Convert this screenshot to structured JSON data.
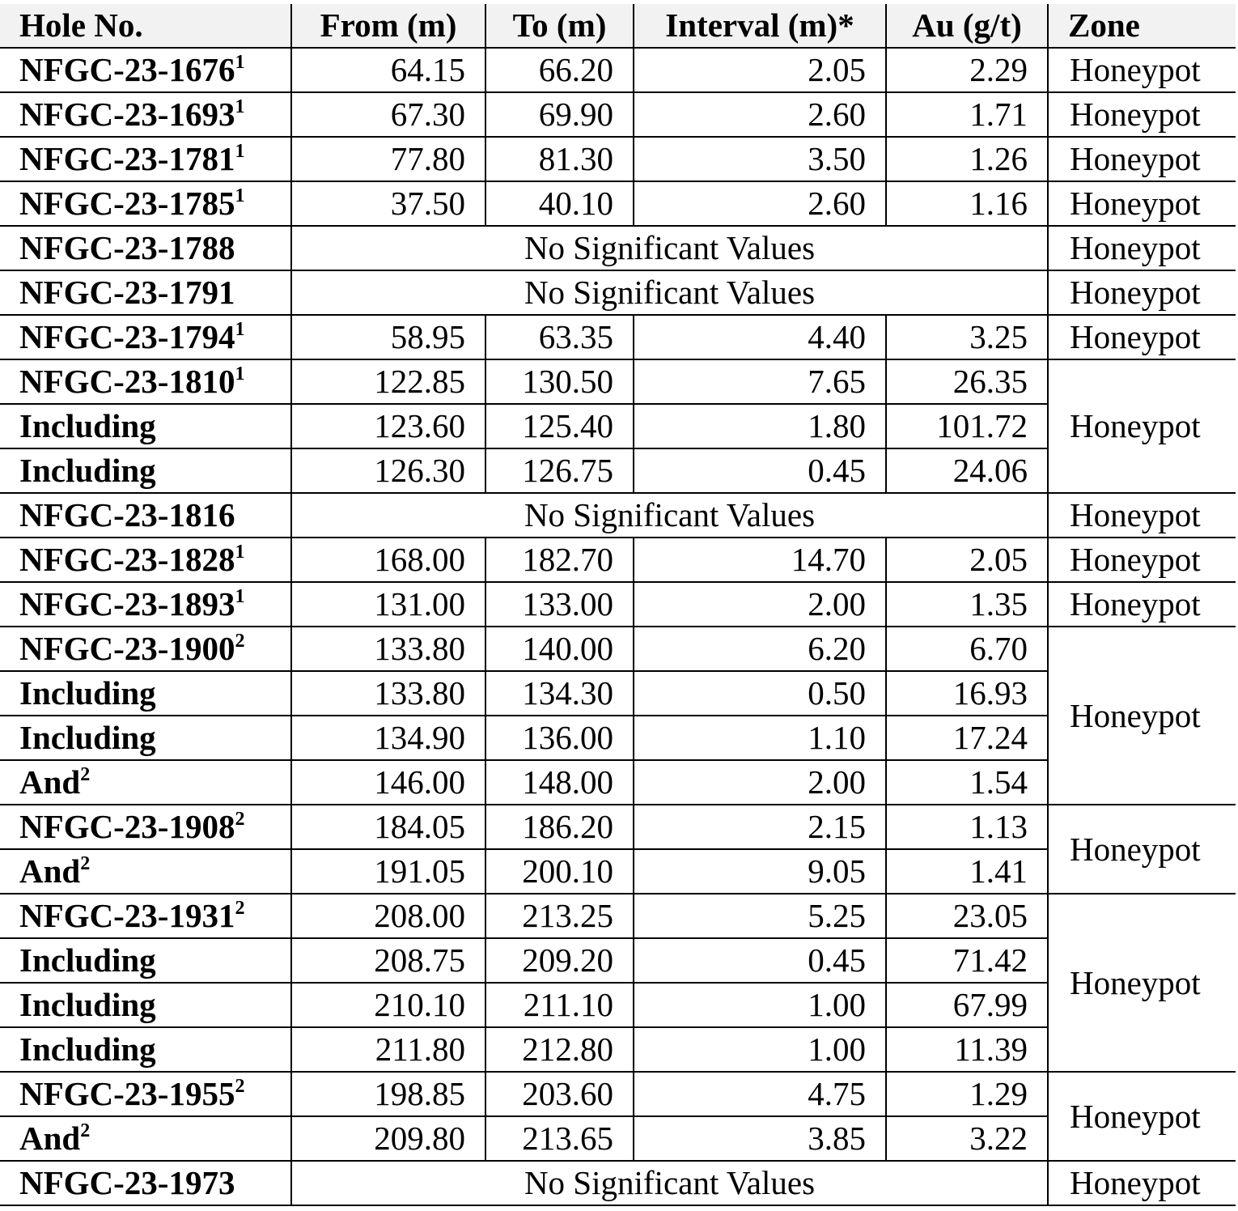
{
  "headers": [
    "Hole No.",
    "From (m)",
    "To (m)",
    "Interval (m)*",
    "Au (g/t)",
    "Zone"
  ],
  "rows": [
    {
      "hole": "NFGC-23-1676",
      "sup": "1",
      "from": "64.15",
      "to": "66.20",
      "interval": "2.05",
      "au": "2.29",
      "zone": "Honeypot",
      "zone_span": 1
    },
    {
      "hole": "NFGC-23-1693",
      "sup": "1",
      "from": "67.30",
      "to": "69.90",
      "interval": "2.60",
      "au": "1.71",
      "zone": "Honeypot",
      "zone_span": 1
    },
    {
      "hole": "NFGC-23-1781",
      "sup": "1",
      "from": "77.80",
      "to": "81.30",
      "interval": "3.50",
      "au": "1.26",
      "zone": "Honeypot",
      "zone_span": 1
    },
    {
      "hole": "NFGC-23-1785",
      "sup": "1",
      "from": "37.50",
      "to": "40.10",
      "interval": "2.60",
      "au": "1.16",
      "zone": "Honeypot",
      "zone_span": 1
    },
    {
      "hole": "NFGC-23-1788",
      "nsv": "No Significant Values",
      "zone": "Honeypot",
      "zone_span": 1
    },
    {
      "hole": "NFGC-23-1791",
      "nsv": "No Significant Values",
      "zone": "Honeypot",
      "zone_span": 1
    },
    {
      "hole": "NFGC-23-1794",
      "sup": "1",
      "from": "58.95",
      "to": "63.35",
      "interval": "4.40",
      "au": "3.25",
      "zone": "Honeypot",
      "zone_span": 1
    },
    {
      "hole": "NFGC-23-1810",
      "sup": "1",
      "from": "122.85",
      "to": "130.50",
      "interval": "7.65",
      "au": "26.35",
      "zone": "Honeypot",
      "zone_span": 3
    },
    {
      "hole": "Including",
      "from": "123.60",
      "to": "125.40",
      "interval": "1.80",
      "au": "101.72"
    },
    {
      "hole": "Including",
      "from": "126.30",
      "to": "126.75",
      "interval": "0.45",
      "au": "24.06"
    },
    {
      "hole": "NFGC-23-1816",
      "nsv": "No Significant Values",
      "zone": "Honeypot",
      "zone_span": 1
    },
    {
      "hole": "NFGC-23-1828",
      "sup": "1",
      "from": "168.00",
      "to": "182.70",
      "interval": "14.70",
      "au": "2.05",
      "zone": "Honeypot",
      "zone_span": 1
    },
    {
      "hole": "NFGC-23-1893",
      "sup": "1",
      "from": "131.00",
      "to": "133.00",
      "interval": "2.00",
      "au": "1.35",
      "zone": "Honeypot",
      "zone_span": 1
    },
    {
      "hole": "NFGC-23-1900",
      "sup": "2",
      "from": "133.80",
      "to": "140.00",
      "interval": "6.20",
      "au": "6.70",
      "zone": "Honeypot",
      "zone_span": 4
    },
    {
      "hole": "Including",
      "from": "133.80",
      "to": "134.30",
      "interval": "0.50",
      "au": "16.93"
    },
    {
      "hole": "Including",
      "from": "134.90",
      "to": "136.00",
      "interval": "1.10",
      "au": "17.24"
    },
    {
      "hole": "And",
      "sup": "2",
      "from": "146.00",
      "to": "148.00",
      "interval": "2.00",
      "au": "1.54"
    },
    {
      "hole": "NFGC-23-1908",
      "sup": "2",
      "from": "184.05",
      "to": "186.20",
      "interval": "2.15",
      "au": "1.13",
      "zone": "Honeypot",
      "zone_span": 2
    },
    {
      "hole": "And",
      "sup": "2",
      "from": "191.05",
      "to": "200.10",
      "interval": "9.05",
      "au": "1.41"
    },
    {
      "hole": "NFGC-23-1931",
      "sup": "2",
      "from": "208.00",
      "to": "213.25",
      "interval": "5.25",
      "au": "23.05",
      "zone": "Honeypot",
      "zone_span": 4
    },
    {
      "hole": "Including",
      "from": "208.75",
      "to": "209.20",
      "interval": "0.45",
      "au": "71.42"
    },
    {
      "hole": "Including",
      "from": "210.10",
      "to": "211.10",
      "interval": "1.00",
      "au": "67.99"
    },
    {
      "hole": "Including",
      "from": "211.80",
      "to": "212.80",
      "interval": "1.00",
      "au": "11.39"
    },
    {
      "hole": "NFGC-23-1955",
      "sup": "2",
      "from": "198.85",
      "to": "203.60",
      "interval": "4.75",
      "au": "1.29",
      "zone": "Honeypot",
      "zone_span": 2
    },
    {
      "hole": "And",
      "sup": "2",
      "from": "209.80",
      "to": "213.65",
      "interval": "3.85",
      "au": "3.22"
    },
    {
      "hole": "NFGC-23-1973",
      "nsv": "No Significant Values",
      "zone": "Honeypot",
      "zone_span": 1
    }
  ]
}
